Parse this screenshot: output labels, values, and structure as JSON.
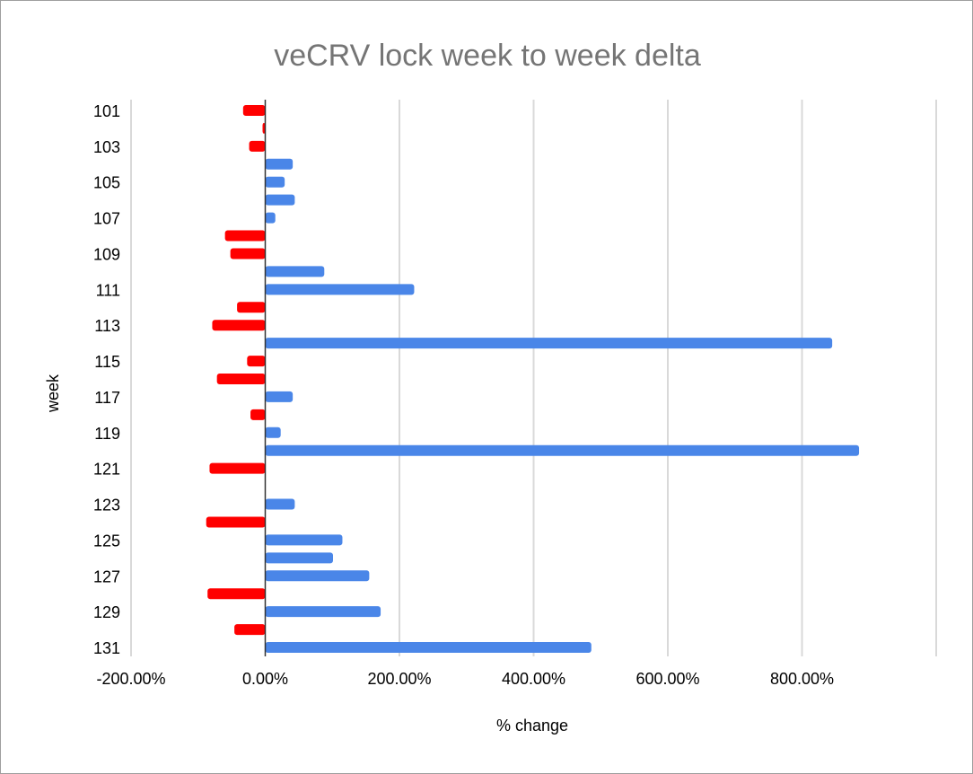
{
  "chart_data": {
    "type": "bar",
    "orientation": "horizontal",
    "title": "veCRV lock week to week delta",
    "xlabel": "% change",
    "ylabel": "week",
    "xlim": [
      -200,
      1000
    ],
    "x_ticks": [
      -200,
      0,
      200,
      400,
      600,
      800
    ],
    "x_tick_labels": [
      "-200.00%",
      "0.00%",
      "200.00%",
      "400.00%",
      "600.00%",
      "800.00%"
    ],
    "y_tick_labels": [
      "101",
      "103",
      "105",
      "107",
      "109",
      "111",
      "113",
      "115",
      "117",
      "119",
      "121",
      "123",
      "125",
      "127",
      "129",
      "131"
    ],
    "categories": [
      101,
      102,
      103,
      104,
      105,
      106,
      107,
      108,
      109,
      110,
      111,
      112,
      113,
      114,
      115,
      116,
      117,
      118,
      119,
      120,
      121,
      122,
      123,
      124,
      125,
      126,
      127,
      128,
      129,
      130,
      131
    ],
    "values": [
      -33,
      -4,
      -24,
      41,
      29,
      44,
      15,
      -60,
      -52,
      88,
      222,
      -42,
      -79,
      845,
      -27,
      -72,
      41,
      -22,
      23,
      885,
      -83,
      null,
      44,
      -88,
      115,
      101,
      155,
      -86,
      172,
      -46,
      486
    ],
    "grid": true,
    "colors": {
      "positive": "#4a86e8",
      "negative": "#ff0000",
      "grid": "#d9d9d9",
      "title": "#757575",
      "text": "#000000"
    }
  }
}
